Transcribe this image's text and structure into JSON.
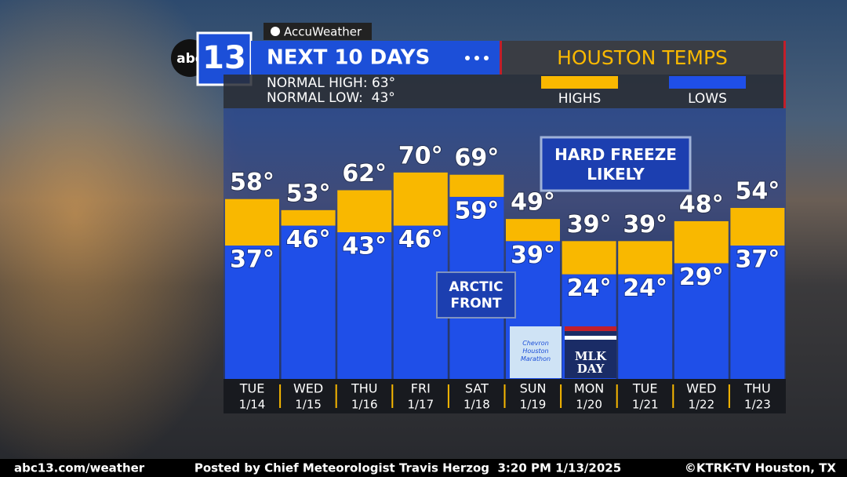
{
  "branding": {
    "logo_abc": "abc",
    "logo_13": "13",
    "sponsor": "AccuWeather"
  },
  "header": {
    "title": "NEXT 10 DAYS",
    "location": "HOUSTON TEMPS",
    "normal_high": "NORMAL HIGH: 63°",
    "normal_low": "NORMAL LOW:  43°"
  },
  "chart_data": {
    "type": "bar",
    "categories": [
      "TUE",
      "WED",
      "THU",
      "FRI",
      "SAT",
      "SUN",
      "MON",
      "TUE",
      "WED",
      "THU"
    ],
    "dates": [
      "1/14",
      "1/15",
      "1/16",
      "1/17",
      "1/18",
      "1/19",
      "1/20",
      "1/21",
      "1/22",
      "1/23"
    ],
    "series": [
      {
        "name": "HIGHS",
        "color": "#f9b800",
        "values": [
          58,
          53,
          62,
          70,
          69,
          49,
          39,
          39,
          48,
          54
        ],
        "value_labels": [
          "58°",
          "53°",
          "62°",
          "70°",
          "69°",
          "49°",
          "39°",
          "39°",
          "48°",
          "54°"
        ]
      },
      {
        "name": "LOWS",
        "color": "#1f4fe8",
        "values": [
          37,
          46,
          43,
          46,
          59,
          39,
          24,
          24,
          29,
          37
        ],
        "value_labels": [
          "37°",
          "46°",
          "43°",
          "46°",
          "59°",
          "39°",
          "24°",
          "24°",
          "29°",
          "37°"
        ]
      }
    ],
    "annotations": [
      "HARD FREEZE LIKELY",
      "ARCTIC FRONT"
    ],
    "events": [
      "Chevron Houston Marathon",
      "MLK DAY"
    ]
  },
  "footer": {
    "left": "abc13.com/weather",
    "center": "Posted by Chief Meteorologist Travis Herzog  3:20 PM 1/13/2025",
    "right": "©KTRK-TV Houston, TX"
  }
}
